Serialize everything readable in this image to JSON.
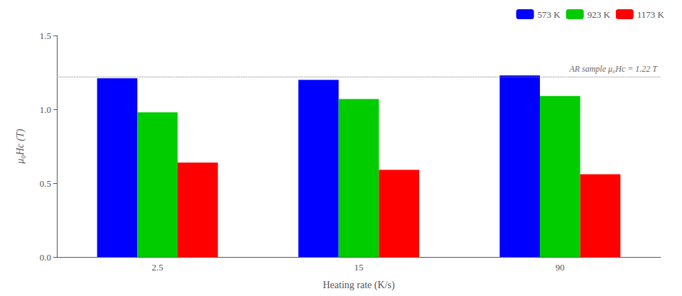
{
  "chart_data": {
    "type": "bar",
    "categories": [
      "2.5",
      "15",
      "90"
    ],
    "series": [
      {
        "name": "573 K",
        "color": "#0000FF",
        "values": [
          1.21,
          1.2,
          1.23
        ]
      },
      {
        "name": "923 K",
        "color": "#00CC00",
        "values": [
          0.98,
          1.07,
          1.09
        ]
      },
      {
        "name": "1173 K",
        "color": "#FF0000",
        "values": [
          0.64,
          0.59,
          0.56
        ]
      }
    ],
    "xlabel": "Heating rate (K/s)",
    "ylabel": "μ₀Hc (T)",
    "ylim": [
      0.0,
      1.5
    ],
    "yticks": [
      {
        "value": 0.0,
        "label": "0.0"
      },
      {
        "value": 0.5,
        "label": "0.5"
      },
      {
        "value": 1.0,
        "label": "1.0"
      },
      {
        "value": 1.5,
        "label": "1.5"
      }
    ],
    "reference_line": {
      "value": 1.22,
      "label": "AR sample μ₀Hc = 1.22 T",
      "line_style": "dotted"
    },
    "legend": "upper right",
    "grid": false
  }
}
